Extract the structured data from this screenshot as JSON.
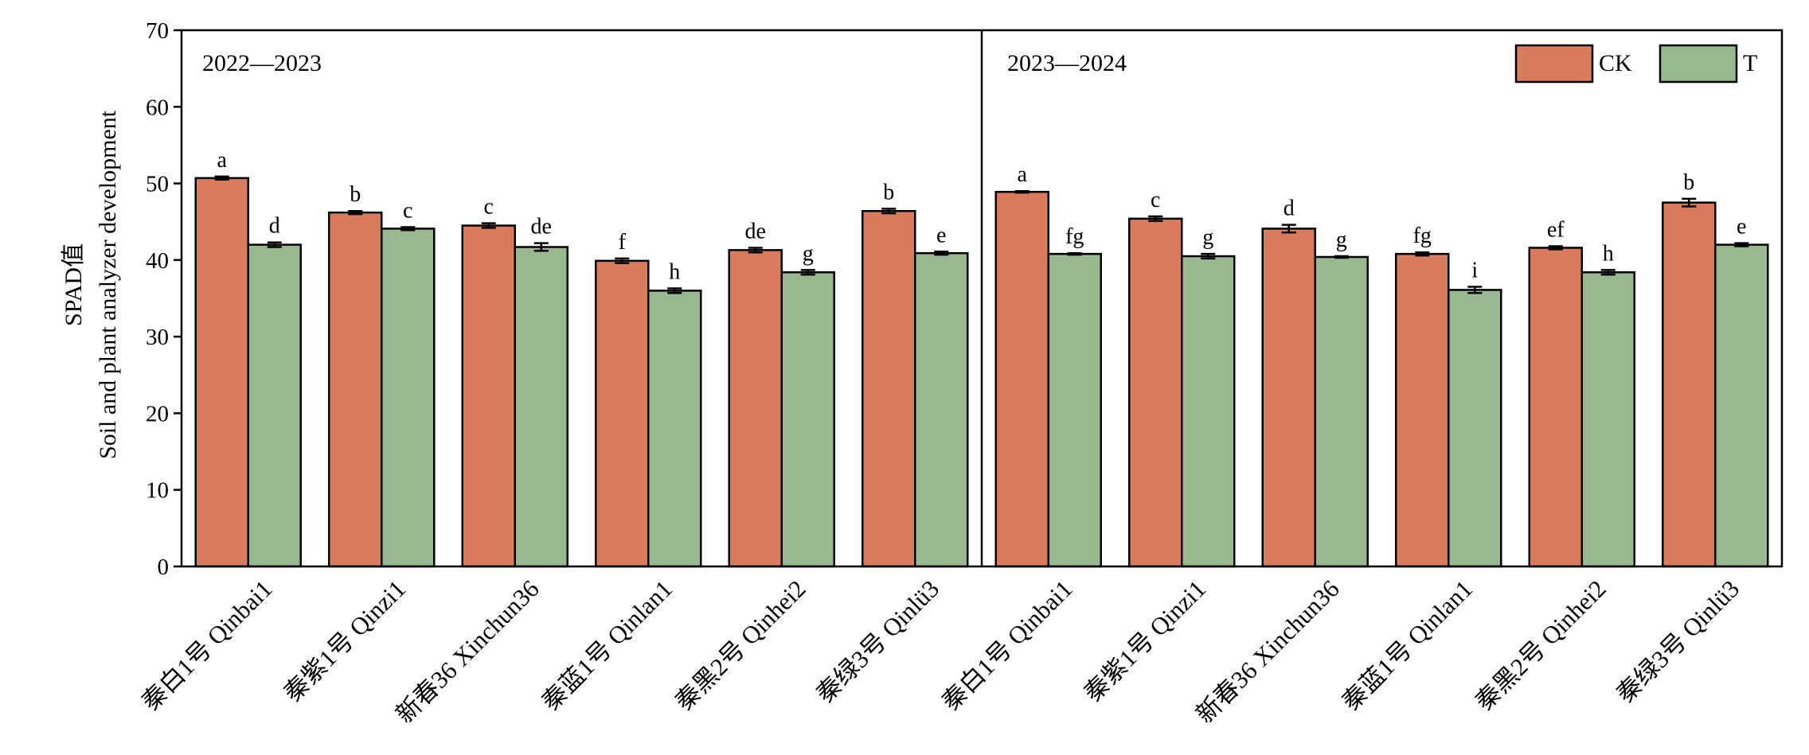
{
  "chart_data": {
    "type": "bar",
    "ylabel_line1": "SPAD值",
    "ylabel_line2": "Soil and plant analyzer development",
    "ylim": [
      0,
      70
    ],
    "yticks": [
      "0",
      "10",
      "20",
      "30",
      "40",
      "50",
      "60",
      "70"
    ],
    "legend_position": "top-right",
    "colors": {
      "CK": "#d97b5d",
      "T": "#98b890"
    },
    "series_names": [
      "CK",
      "T"
    ],
    "panels": [
      {
        "label": "2022—2023",
        "categories": [
          "秦白1号 Qinbai1",
          "秦紫1号 Qinzi1",
          "新春36 Xinchun36",
          "秦蓝1号 Qinlan1",
          "秦黑2号 Qinhei2",
          "秦绿3号 Qinlü3"
        ],
        "series": [
          {
            "name": "CK",
            "values": [
              50.7,
              46.2,
              44.5,
              39.9,
              41.3,
              46.4
            ],
            "errors": [
              0.2,
              0.2,
              0.3,
              0.3,
              0.3,
              0.3
            ],
            "letters": [
              "a",
              "b",
              "c",
              "f",
              "de",
              "b"
            ]
          },
          {
            "name": "T",
            "values": [
              42.0,
              44.1,
              41.7,
              36.0,
              38.4,
              40.9
            ],
            "errors": [
              0.3,
              0.2,
              0.5,
              0.3,
              0.3,
              0.2
            ],
            "letters": [
              "d",
              "c",
              "de",
              "h",
              "g",
              "e"
            ]
          }
        ]
      },
      {
        "label": "2023—2024",
        "categories": [
          "秦白1号 Qinbai1",
          "秦紫1号 Qinzi1",
          "新春36 Xinchun36",
          "秦蓝1号 Qinlan1",
          "秦黑2号 Qinhei2",
          "秦绿3号 Qinlü3"
        ],
        "series": [
          {
            "name": "CK",
            "values": [
              48.9,
              45.4,
              44.1,
              40.8,
              41.6,
              47.5
            ],
            "errors": [
              0.1,
              0.3,
              0.5,
              0.2,
              0.2,
              0.5
            ],
            "letters": [
              "a",
              "c",
              "d",
              "fg",
              "ef",
              "b"
            ]
          },
          {
            "name": "T",
            "values": [
              40.8,
              40.5,
              40.4,
              36.1,
              38.4,
              42.0
            ],
            "errors": [
              0.1,
              0.3,
              0.1,
              0.4,
              0.3,
              0.2
            ],
            "letters": [
              "fg",
              "g",
              "g",
              "i",
              "h",
              "e"
            ]
          }
        ]
      }
    ]
  }
}
